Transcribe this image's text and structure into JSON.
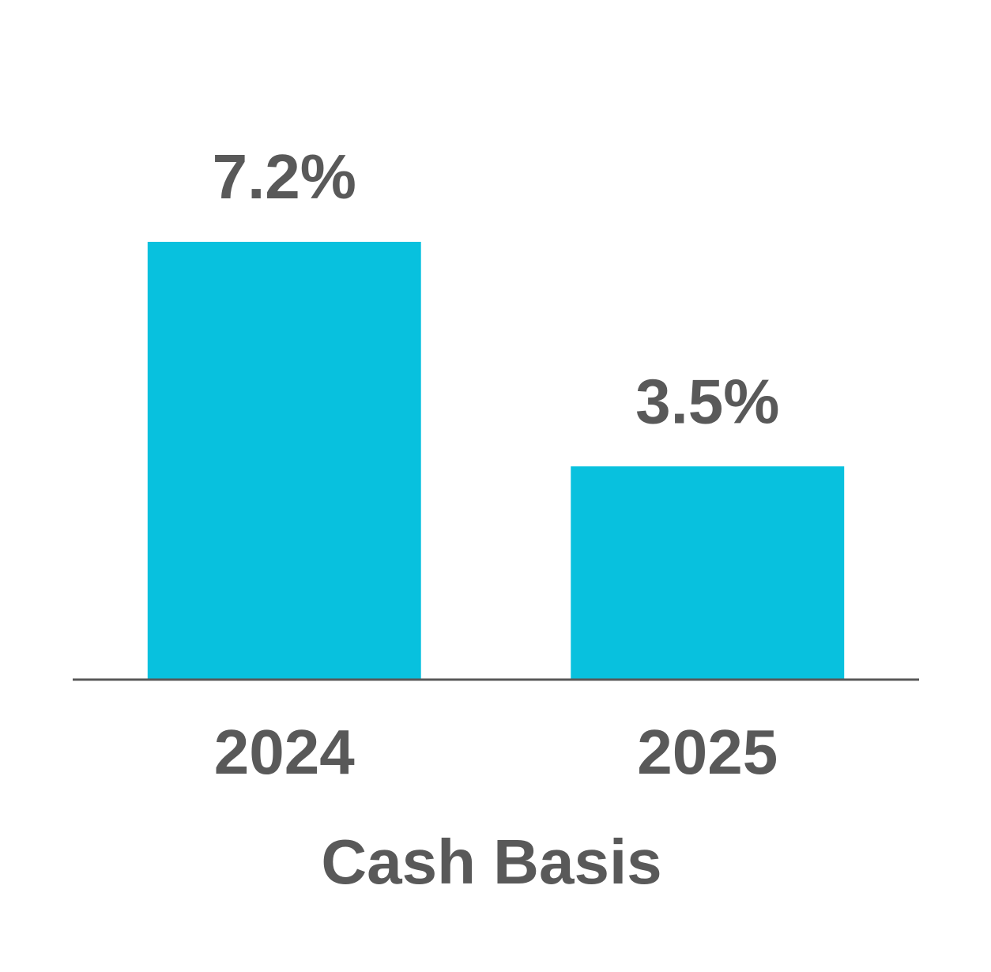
{
  "chart_data": {
    "type": "bar",
    "x_label": "Cash Basis",
    "categories": [
      "2024",
      "2025"
    ],
    "values": [
      7.2,
      3.5
    ],
    "value_labels": [
      "7.2%",
      "3.5%"
    ],
    "color": "#08c1de"
  }
}
